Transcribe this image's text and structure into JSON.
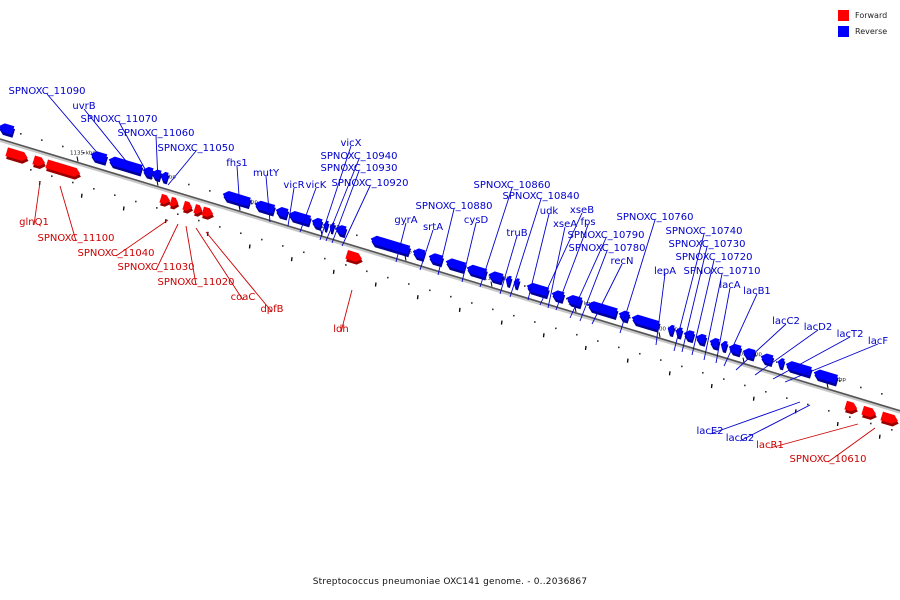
{
  "legend": {
    "forward": {
      "label": "Forward",
      "color": "#ff0000"
    },
    "reverse": {
      "label": "Reverse",
      "color": "#0000ff"
    }
  },
  "caption": "Streptococcus pneumoniae OXC141 genome. - 0..2036867",
  "axis": {
    "tick_labels": [
      "1135 kbp",
      "1130 kbp",
      "1125 kbp",
      "1120 kbp",
      "1115 kbp",
      "1110 kbp",
      "1105 kbp",
      "1100 kbp",
      "1095 kbp",
      "1090 kbp"
    ]
  },
  "genes": {
    "reverse": [
      "SPNOXC_11090",
      "uvrB",
      "SPNOXC_11070",
      "SPNOXC_11060",
      "SPNOXC_11050",
      "fhs1",
      "mutY",
      "vicR",
      "vicK",
      "vicX",
      "SPNOXC_10940",
      "SPNOXC_10930",
      "SPNOXC_10920",
      "gyrA",
      "srtA",
      "SPNOXC_10880",
      "cysD",
      "SPNOXC_10860",
      "truB",
      "SPNOXC_10840",
      "udk",
      "xseB",
      "xseA",
      "fps",
      "SPNOXC_10790",
      "SPNOXC_10780",
      "recN",
      "SPNOXC_10760",
      "lepA",
      "SPNOXC_10740",
      "SPNOXC_10730",
      "SPNOXC_10720",
      "SPNOXC_10710",
      "lacA",
      "lacB1",
      "lacC2",
      "lacD2",
      "lacT2",
      "lacF",
      "lacE2",
      "lacG2"
    ],
    "forward": [
      "glnQ1",
      "SPNOXC_11100",
      "SPNOXC_11040",
      "SPNOXC_11030",
      "SPNOXC_11020",
      "coaC",
      "dpfB",
      "ldh",
      "lacR1",
      "SPNOXC_10610"
    ]
  }
}
